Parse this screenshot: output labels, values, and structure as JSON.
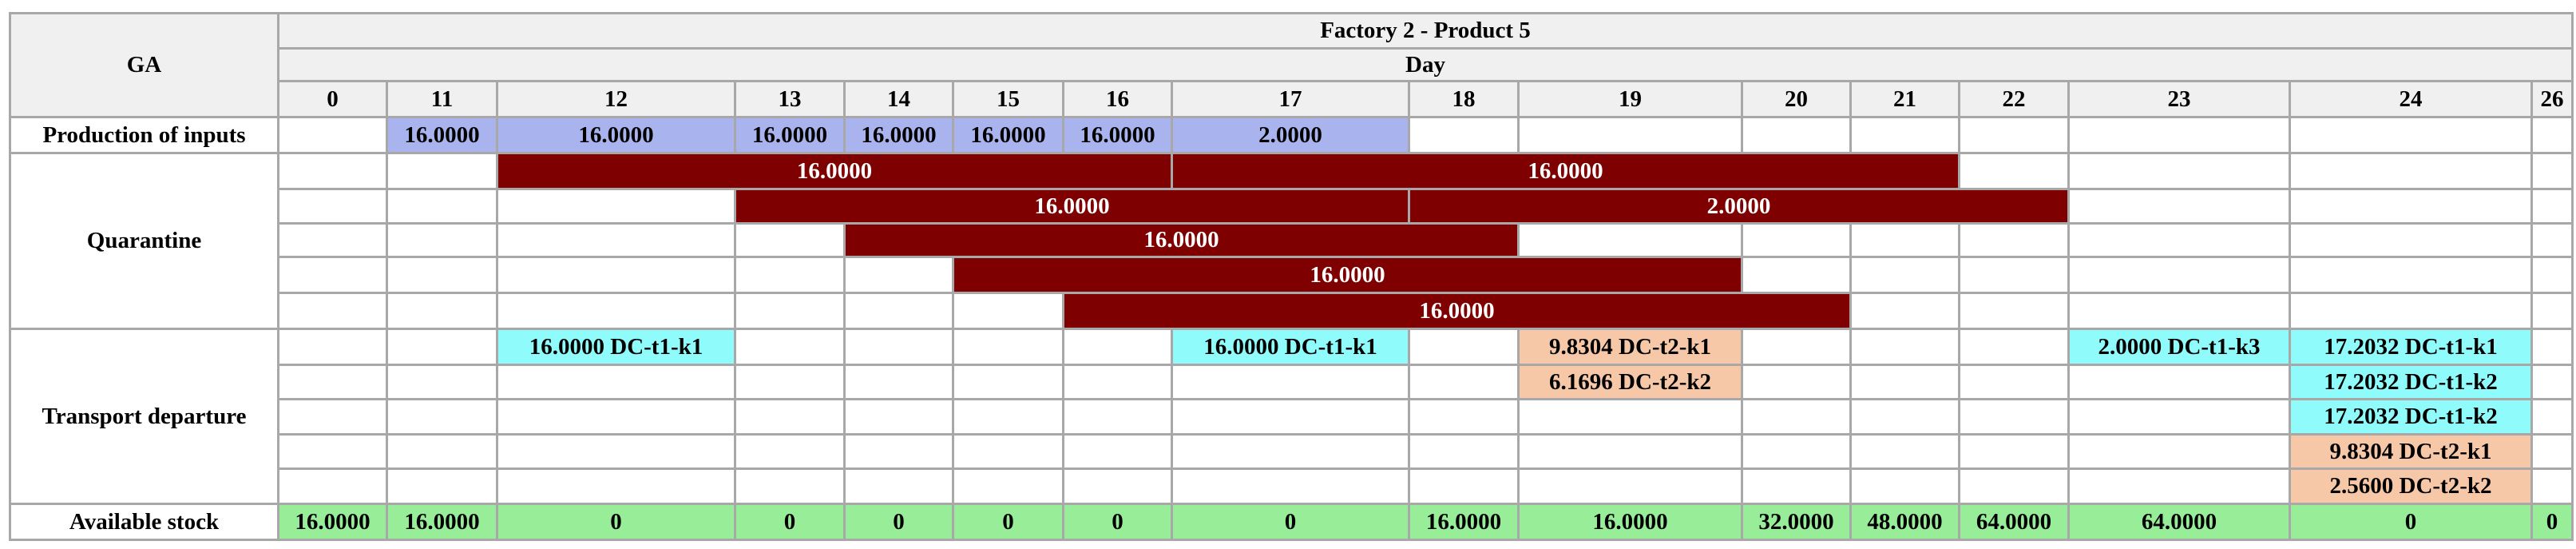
{
  "corner_label": "GA",
  "title": "Factory 2 - Product 5",
  "day_header": "Day",
  "days": [
    "0",
    "11",
    "12",
    "13",
    "14",
    "15",
    "16",
    "17",
    "18",
    "19",
    "20",
    "21",
    "22",
    "23",
    "24",
    "26"
  ],
  "row_labels": {
    "production": "Production of inputs",
    "quarantine": "Quarantine",
    "transport": "Transport departure",
    "stock": "Available stock"
  },
  "production": [
    {
      "day": "11",
      "value": "16.0000"
    },
    {
      "day": "12",
      "value": "16.0000"
    },
    {
      "day": "13",
      "value": "16.0000"
    },
    {
      "day": "14",
      "value": "16.0000"
    },
    {
      "day": "15",
      "value": "16.0000"
    },
    {
      "day": "16",
      "value": "16.0000"
    },
    {
      "day": "17",
      "value": "2.0000"
    }
  ],
  "quarantine": [
    [
      {
        "from": "12",
        "to": "16",
        "value": "16.0000"
      },
      {
        "from": "17",
        "to": "21",
        "value": "16.0000"
      }
    ],
    [
      {
        "from": "13",
        "to": "17",
        "value": "16.0000"
      },
      {
        "from": "18",
        "to": "22",
        "value": "2.0000"
      }
    ],
    [
      {
        "from": "14",
        "to": "18",
        "value": "16.0000"
      }
    ],
    [
      {
        "from": "15",
        "to": "19",
        "value": "16.0000"
      }
    ],
    [
      {
        "from": "16",
        "to": "20",
        "value": "16.0000"
      }
    ]
  ],
  "transport": [
    [
      {
        "day": "12",
        "text": "16.0000 DC-t1-k1",
        "dc": "t1"
      },
      {
        "day": "17",
        "text": "16.0000 DC-t1-k1",
        "dc": "t1"
      },
      {
        "day": "19",
        "text": "9.8304 DC-t2-k1",
        "dc": "t2"
      },
      {
        "day": "23",
        "text": "2.0000 DC-t1-k3",
        "dc": "t1"
      },
      {
        "day": "24",
        "text": "17.2032 DC-t1-k1",
        "dc": "t1"
      }
    ],
    [
      {
        "day": "19",
        "text": "6.1696 DC-t2-k2",
        "dc": "t2"
      },
      {
        "day": "24",
        "text": "17.2032 DC-t1-k2",
        "dc": "t1"
      }
    ],
    [
      {
        "day": "24",
        "text": "17.2032 DC-t1-k2",
        "dc": "t1"
      }
    ],
    [
      {
        "day": "24",
        "text": "9.8304 DC-t2-k1",
        "dc": "t2"
      }
    ],
    [
      {
        "day": "24",
        "text": "2.5600 DC-t2-k2",
        "dc": "t2"
      }
    ]
  ],
  "stock": [
    "16.0000",
    "16.0000",
    "0",
    "0",
    "0",
    "0",
    "0",
    "0",
    "16.0000",
    "16.0000",
    "32.0000",
    "48.0000",
    "64.0000",
    "64.0000",
    "0",
    "0"
  ],
  "colors": {
    "header_bg": "#f0f0f0",
    "production": "#a9b4ee",
    "quarantine": "#7f0000",
    "transport_dc_t1": "#8ffcfb",
    "transport_dc_t2": "#f7c8a8",
    "stock": "#98ee98",
    "grid_line": "#a8a8a8"
  }
}
